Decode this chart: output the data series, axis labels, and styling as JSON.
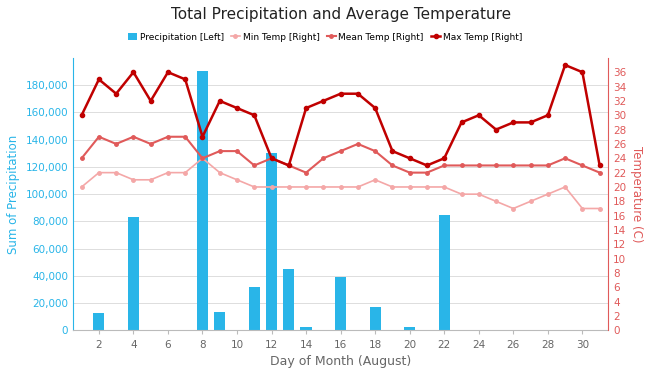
{
  "title": "Total Precipitation and Average Temperature",
  "xlabel": "Day of Month (August)",
  "ylabel_left": "Sum of Precipitation",
  "ylabel_right": "Temperature (C)",
  "days": [
    1,
    2,
    3,
    4,
    5,
    6,
    7,
    8,
    9,
    10,
    11,
    12,
    13,
    14,
    15,
    16,
    17,
    18,
    19,
    20,
    21,
    22,
    23,
    24,
    25,
    26,
    27,
    28,
    29,
    30,
    31
  ],
  "precipitation": [
    0,
    13000,
    0,
    83000,
    0,
    0,
    0,
    190000,
    13500,
    0,
    32000,
    130000,
    45000,
    2500,
    0,
    39000,
    0,
    17000,
    0,
    2500,
    0,
    85000,
    0,
    0,
    0,
    0,
    0,
    0,
    0,
    0,
    0
  ],
  "min_temp": [
    20,
    22,
    22,
    21,
    21,
    22,
    22,
    24,
    22,
    21,
    20,
    20,
    20,
    20,
    20,
    20,
    20,
    21,
    20,
    20,
    20,
    20,
    19,
    19,
    18,
    17,
    18,
    19,
    20,
    17,
    17
  ],
  "mean_temp": [
    24,
    27,
    26,
    27,
    26,
    27,
    27,
    24,
    25,
    25,
    23,
    24,
    23,
    22,
    24,
    25,
    26,
    25,
    23,
    22,
    22,
    23,
    23,
    23,
    23,
    23,
    23,
    23,
    24,
    23,
    22
  ],
  "max_temp": [
    30,
    35,
    33,
    36,
    32,
    36,
    35,
    27,
    32,
    31,
    30,
    24,
    23,
    31,
    32,
    33,
    33,
    31,
    25,
    24,
    23,
    24,
    29,
    30,
    28,
    29,
    29,
    30,
    37,
    36,
    23
  ],
  "bar_color": "#29b5e8",
  "min_temp_color": "#f4a7a7",
  "mean_temp_color": "#e05a5a",
  "max_temp_color": "#c00000",
  "bg_color": "#ffffff",
  "grid_color": "#dddddd",
  "left_axis_color": "#29b5e8",
  "right_axis_color": "#e05a5a",
  "ylim_left": [
    0,
    190001
  ],
  "ylim_right": [
    0,
    38
  ],
  "legend_labels": [
    "Precipitation [Left]",
    "Min Temp [Right]",
    "Mean Temp [Right]",
    "Max Temp [Right]"
  ]
}
